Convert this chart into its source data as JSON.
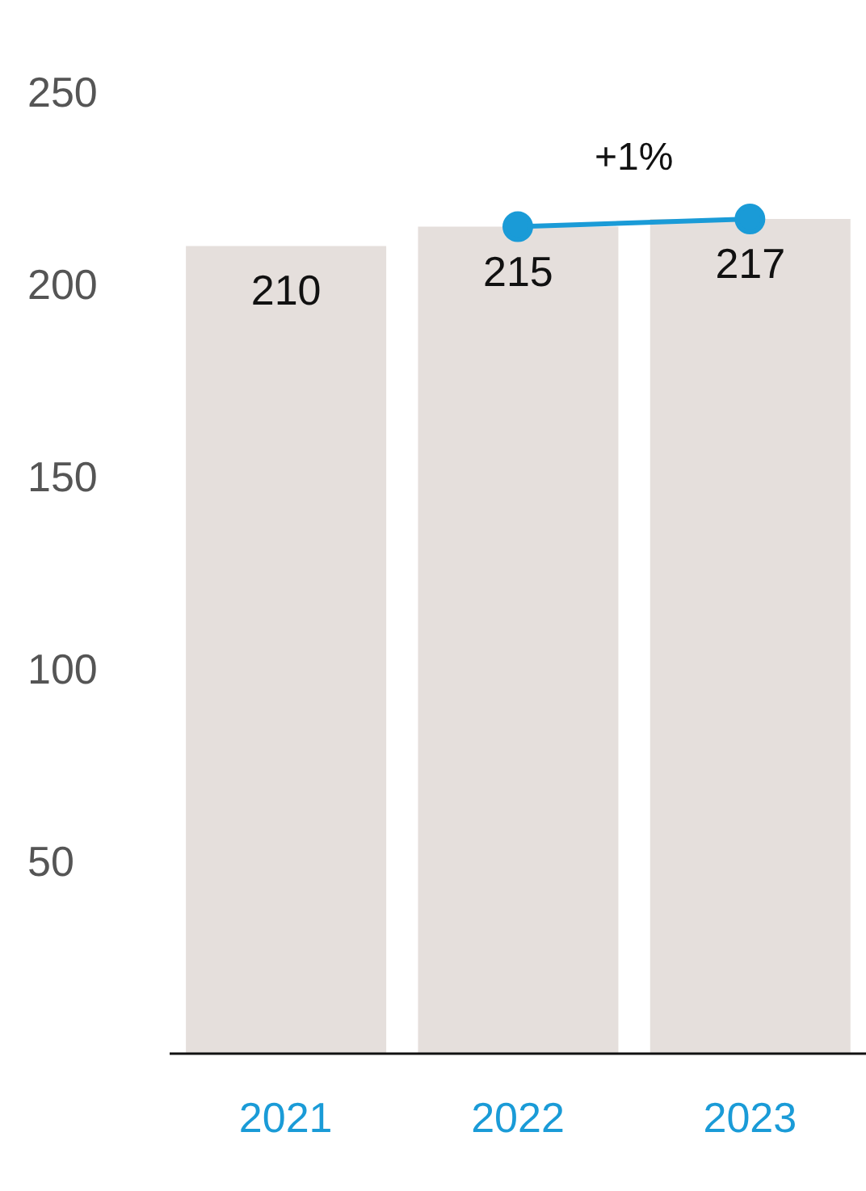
{
  "chart_data": {
    "type": "bar",
    "categories": [
      "2021",
      "2022",
      "2023"
    ],
    "series": [
      {
        "color": "#e5dfdc",
        "values": [
          210,
          215,
          217
        ],
        "value_labels": [
          "210",
          "215",
          "217"
        ]
      },
      {
        "type": "line",
        "color": "#1a9bd7",
        "values": [
          null,
          215,
          217
        ],
        "marker": "circle"
      }
    ],
    "ylim": [
      0,
      250
    ],
    "yticks": [
      50,
      100,
      150,
      200,
      250
    ],
    "annotations": [
      "+1%"
    ]
  }
}
